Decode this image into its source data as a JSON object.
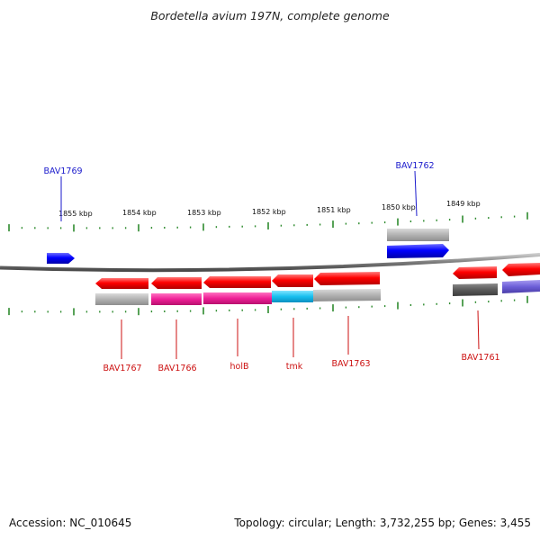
{
  "title": "Bordetella avium 197N, complete genome",
  "footer": {
    "accession": "Accession: NC_010645",
    "topology": "Topology: circular; Length: 3,732,255 bp; Genes: 3,455"
  },
  "colors": {
    "tick": "#2e8b2e",
    "backbone": "#8a8a8a",
    "plus_label": "#1a1acc",
    "minus_label": "#cc1111"
  },
  "scale_labels": [
    "1855 kbp",
    "1854 kbp",
    "1853 kbp",
    "1852 kbp",
    "1851 kbp",
    "1850 kbp",
    "1849 kbp"
  ],
  "gene_labels": {
    "BAV1769": "BAV1769",
    "BAV1762": "BAV1762",
    "BAV1767": "BAV1767",
    "BAV1766": "BAV1766",
    "holB": "holB",
    "tmk": "tmk",
    "BAV1763": "BAV1763",
    "BAV1761": "BAV1761"
  }
}
